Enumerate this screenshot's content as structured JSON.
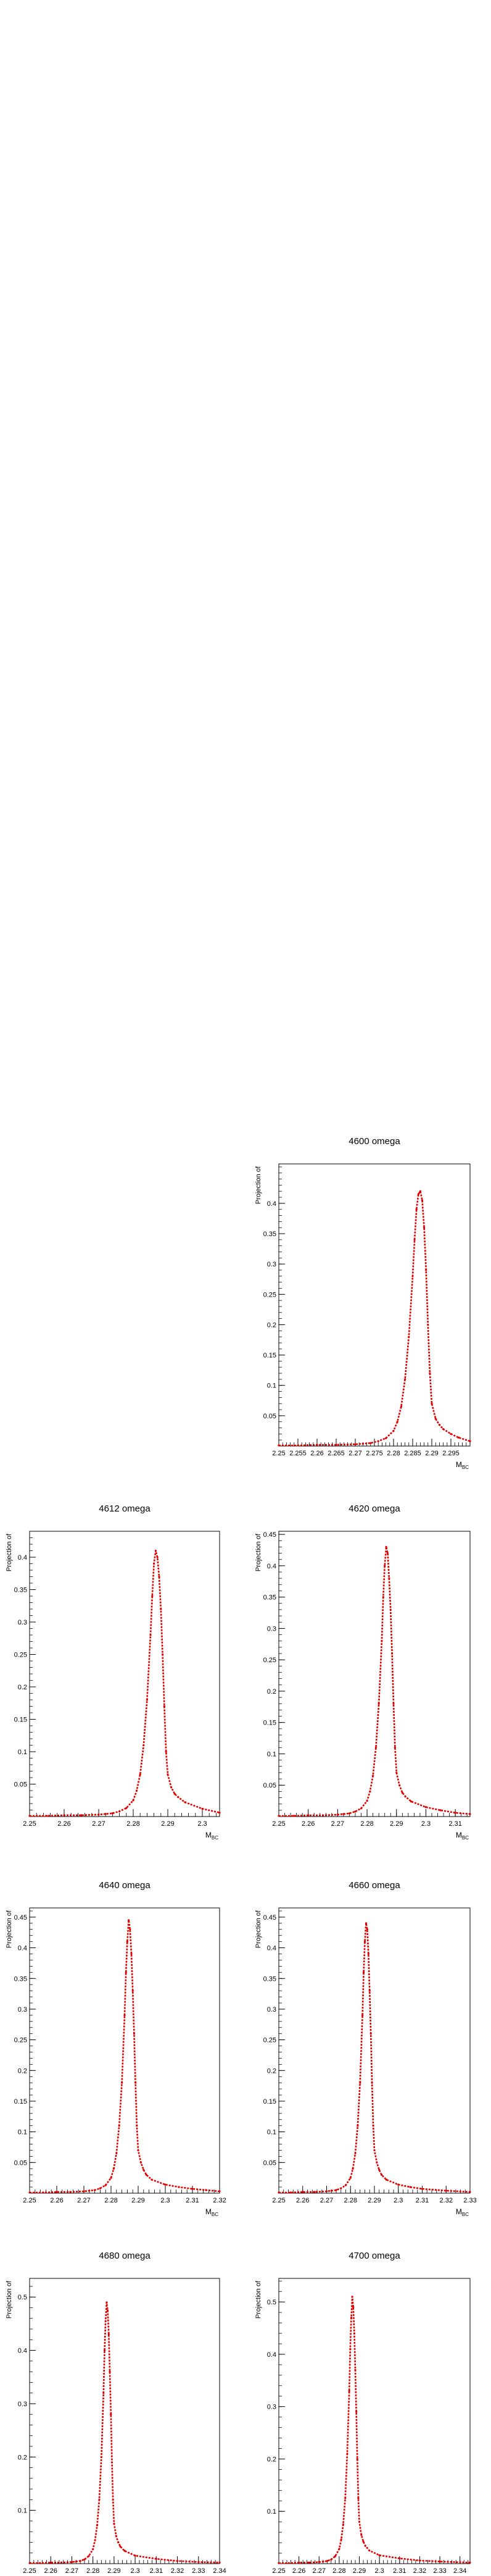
{
  "chart_data": [
    {
      "type": "line",
      "title": "4600 omega",
      "xlabel": "M_BC",
      "ylabel": "Projection of",
      "xlim": [
        2.25,
        2.3
      ],
      "ylim": [
        0,
        0.465
      ],
      "xticks": [
        "2.25",
        "2.255",
        "2.26",
        "2.265",
        "2.27",
        "2.275",
        "2.28",
        "2.285",
        "2.29",
        "2.295"
      ],
      "yticks": [
        "0.05",
        "0.1",
        "0.15",
        "0.2",
        "0.25",
        "0.3",
        "0.35",
        "0.4"
      ],
      "series": [
        {
          "color": "#e00000",
          "peak_x": 2.2868,
          "peak_y": 0.42,
          "x": [
            2.25,
            2.255,
            2.26,
            2.265,
            2.27,
            2.272,
            2.274,
            2.276,
            2.278,
            2.28,
            2.281,
            2.282,
            2.283,
            2.284,
            2.285,
            2.2855,
            2.286,
            2.2865,
            2.287,
            2.2875,
            2.288,
            2.2885,
            2.289,
            2.2895,
            2.29,
            2.291,
            2.292,
            2.293,
            2.295,
            2.297,
            2.3
          ],
          "y": [
            0.001,
            0.001,
            0.002,
            0.002,
            0.003,
            0.004,
            0.005,
            0.008,
            0.013,
            0.025,
            0.04,
            0.065,
            0.11,
            0.18,
            0.28,
            0.34,
            0.39,
            0.415,
            0.42,
            0.405,
            0.36,
            0.29,
            0.2,
            0.12,
            0.07,
            0.045,
            0.035,
            0.028,
            0.02,
            0.014,
            0.008
          ]
        }
      ]
    },
    {
      "type": "line",
      "title": "4612 omega",
      "xlabel": "M_BC",
      "ylabel": "Projection of",
      "xlim": [
        2.25,
        2.305
      ],
      "ylim": [
        0,
        0.44
      ],
      "xticks": [
        "2.25",
        "2.26",
        "2.27",
        "2.28",
        "2.29",
        "2.3"
      ],
      "yticks": [
        "0.05",
        "0.1",
        "0.15",
        "0.2",
        "0.25",
        "0.3",
        "0.35",
        "0.4"
      ],
      "series": [
        {
          "color": "#e00000",
          "peak_x": 2.2865,
          "peak_y": 0.41,
          "x": [
            2.25,
            2.255,
            2.26,
            2.265,
            2.27,
            2.272,
            2.274,
            2.276,
            2.278,
            2.28,
            2.281,
            2.282,
            2.283,
            2.284,
            2.285,
            2.2855,
            2.286,
            2.2865,
            2.287,
            2.2875,
            2.288,
            2.2885,
            2.289,
            2.2895,
            2.29,
            2.291,
            2.292,
            2.293,
            2.295,
            2.3,
            2.305
          ],
          "y": [
            0.001,
            0.001,
            0.002,
            0.002,
            0.003,
            0.004,
            0.005,
            0.008,
            0.013,
            0.025,
            0.04,
            0.065,
            0.11,
            0.18,
            0.28,
            0.34,
            0.39,
            0.41,
            0.4,
            0.37,
            0.32,
            0.25,
            0.17,
            0.1,
            0.065,
            0.045,
            0.035,
            0.03,
            0.022,
            0.012,
            0.006
          ]
        }
      ]
    },
    {
      "type": "line",
      "title": "4620 omega",
      "xlabel": "M_BC",
      "ylabel": "Projection of",
      "xlim": [
        2.25,
        2.315
      ],
      "ylim": [
        0,
        0.455
      ],
      "xticks": [
        "2.25",
        "2.26",
        "2.27",
        "2.28",
        "2.29",
        "2.3",
        "2.31"
      ],
      "yticks": [
        "0.05",
        "0.1",
        "0.15",
        "0.2",
        "0.25",
        "0.3",
        "0.35",
        "0.4",
        "0.45"
      ],
      "series": [
        {
          "color": "#e00000",
          "peak_x": 2.2865,
          "peak_y": 0.43,
          "x": [
            2.25,
            2.255,
            2.26,
            2.265,
            2.27,
            2.272,
            2.274,
            2.276,
            2.278,
            2.28,
            2.281,
            2.282,
            2.283,
            2.284,
            2.285,
            2.2855,
            2.286,
            2.2865,
            2.287,
            2.2875,
            2.288,
            2.2885,
            2.289,
            2.2895,
            2.29,
            2.291,
            2.292,
            2.293,
            2.295,
            2.3,
            2.305,
            2.31,
            2.315
          ],
          "y": [
            0.001,
            0.001,
            0.002,
            0.002,
            0.003,
            0.004,
            0.005,
            0.008,
            0.013,
            0.025,
            0.04,
            0.065,
            0.11,
            0.18,
            0.28,
            0.35,
            0.4,
            0.43,
            0.42,
            0.38,
            0.33,
            0.26,
            0.18,
            0.11,
            0.07,
            0.05,
            0.038,
            0.032,
            0.024,
            0.015,
            0.01,
            0.006,
            0.004
          ]
        }
      ]
    },
    {
      "type": "line",
      "title": "4640 omega",
      "xlabel": "M_BC",
      "ylabel": "Projection of",
      "xlim": [
        2.25,
        2.32
      ],
      "ylim": [
        0,
        0.465
      ],
      "xticks": [
        "2.25",
        "2.26",
        "2.27",
        "2.28",
        "2.29",
        "2.3",
        "2.31",
        "2.32"
      ],
      "yticks": [
        "0.05",
        "0.1",
        "0.15",
        "0.2",
        "0.25",
        "0.3",
        "0.35",
        "0.4",
        "0.45"
      ],
      "series": [
        {
          "color": "#e00000",
          "peak_x": 2.2865,
          "peak_y": 0.445,
          "x": [
            2.25,
            2.255,
            2.26,
            2.265,
            2.27,
            2.272,
            2.274,
            2.276,
            2.278,
            2.28,
            2.281,
            2.282,
            2.283,
            2.284,
            2.285,
            2.2855,
            2.286,
            2.2865,
            2.287,
            2.2875,
            2.288,
            2.2885,
            2.289,
            2.2895,
            2.29,
            2.291,
            2.292,
            2.293,
            2.295,
            2.3,
            2.305,
            2.31,
            2.315,
            2.32
          ],
          "y": [
            0.001,
            0.001,
            0.002,
            0.002,
            0.003,
            0.004,
            0.005,
            0.008,
            0.013,
            0.025,
            0.04,
            0.065,
            0.11,
            0.18,
            0.29,
            0.36,
            0.41,
            0.445,
            0.43,
            0.39,
            0.33,
            0.26,
            0.18,
            0.11,
            0.07,
            0.05,
            0.038,
            0.03,
            0.022,
            0.014,
            0.01,
            0.007,
            0.005,
            0.003
          ]
        }
      ]
    },
    {
      "type": "line",
      "title": "4660 omega",
      "xlabel": "M_BC",
      "ylabel": "Projection of",
      "xlim": [
        2.25,
        2.33
      ],
      "ylim": [
        0,
        0.465
      ],
      "xticks": [
        "2.25",
        "2.26",
        "2.27",
        "2.28",
        "2.29",
        "2.3",
        "2.31",
        "2.32",
        "2.33"
      ],
      "yticks": [
        "0.05",
        "0.1",
        "0.15",
        "0.2",
        "0.25",
        "0.3",
        "0.35",
        "0.4",
        "0.45"
      ],
      "series": [
        {
          "color": "#e00000",
          "peak_x": 2.2865,
          "peak_y": 0.44,
          "x": [
            2.25,
            2.255,
            2.26,
            2.265,
            2.27,
            2.272,
            2.274,
            2.276,
            2.278,
            2.28,
            2.281,
            2.282,
            2.283,
            2.284,
            2.285,
            2.2855,
            2.286,
            2.2865,
            2.287,
            2.2875,
            2.288,
            2.2885,
            2.289,
            2.2895,
            2.29,
            2.291,
            2.292,
            2.293,
            2.295,
            2.3,
            2.305,
            2.31,
            2.32,
            2.33
          ],
          "y": [
            0.001,
            0.001,
            0.002,
            0.002,
            0.003,
            0.004,
            0.005,
            0.008,
            0.013,
            0.025,
            0.04,
            0.065,
            0.11,
            0.18,
            0.29,
            0.36,
            0.41,
            0.44,
            0.43,
            0.39,
            0.33,
            0.26,
            0.18,
            0.11,
            0.07,
            0.05,
            0.038,
            0.03,
            0.022,
            0.014,
            0.01,
            0.007,
            0.004,
            0.002
          ]
        }
      ]
    },
    {
      "type": "line",
      "title": "4680 omega",
      "xlabel": "M_BC",
      "ylabel": "Projection of",
      "xlim": [
        2.25,
        2.34
      ],
      "ylim": [
        0,
        0.535
      ],
      "xticks": [
        "2.25",
        "2.26",
        "2.27",
        "2.28",
        "2.29",
        "2.3",
        "2.31",
        "2.32",
        "2.33",
        "2.34"
      ],
      "yticks": [
        "0.1",
        "0.2",
        "0.3",
        "0.4",
        "0.5"
      ],
      "series": [
        {
          "color": "#e00000",
          "peak_x": 2.2865,
          "peak_y": 0.49,
          "x": [
            2.25,
            2.255,
            2.26,
            2.265,
            2.27,
            2.272,
            2.274,
            2.276,
            2.278,
            2.28,
            2.281,
            2.282,
            2.283,
            2.284,
            2.285,
            2.2855,
            2.286,
            2.2865,
            2.287,
            2.2875,
            2.288,
            2.2885,
            2.289,
            2.2895,
            2.29,
            2.291,
            2.292,
            2.293,
            2.295,
            2.3,
            2.31,
            2.32,
            2.33,
            2.34
          ],
          "y": [
            0.001,
            0.001,
            0.002,
            0.002,
            0.003,
            0.004,
            0.005,
            0.008,
            0.014,
            0.027,
            0.044,
            0.072,
            0.12,
            0.2,
            0.32,
            0.4,
            0.455,
            0.49,
            0.475,
            0.43,
            0.36,
            0.28,
            0.19,
            0.12,
            0.075,
            0.052,
            0.04,
            0.032,
            0.024,
            0.015,
            0.009,
            0.005,
            0.003,
            0.002
          ]
        }
      ]
    },
    {
      "type": "line",
      "title": "4700 omega",
      "xlabel": "M_BC",
      "ylabel": "Projection of",
      "xlim": [
        2.25,
        2.345
      ],
      "ylim": [
        0,
        0.545
      ],
      "xticks": [
        "2.25",
        "2.26",
        "2.27",
        "2.28",
        "2.29",
        "2.3",
        "2.31",
        "2.32",
        "2.33",
        "2.34"
      ],
      "yticks": [
        "0.1",
        "0.2",
        "0.3",
        "0.4",
        "0.5"
      ],
      "series": [
        {
          "color": "#e00000",
          "peak_x": 2.2865,
          "peak_y": 0.51,
          "x": [
            2.25,
            2.255,
            2.26,
            2.265,
            2.27,
            2.272,
            2.274,
            2.276,
            2.278,
            2.28,
            2.281,
            2.282,
            2.283,
            2.284,
            2.285,
            2.2855,
            2.286,
            2.2865,
            2.287,
            2.2875,
            2.288,
            2.2885,
            2.289,
            2.2895,
            2.29,
            2.291,
            2.292,
            2.293,
            2.295,
            2.3,
            2.31,
            2.32,
            2.33,
            2.345
          ],
          "y": [
            0.001,
            0.001,
            0.002,
            0.002,
            0.003,
            0.004,
            0.005,
            0.008,
            0.014,
            0.028,
            0.046,
            0.075,
            0.125,
            0.21,
            0.33,
            0.41,
            0.47,
            0.51,
            0.49,
            0.44,
            0.37,
            0.29,
            0.2,
            0.125,
            0.08,
            0.055,
            0.042,
            0.034,
            0.025,
            0.016,
            0.01,
            0.006,
            0.004,
            0.002
          ]
        }
      ]
    }
  ]
}
